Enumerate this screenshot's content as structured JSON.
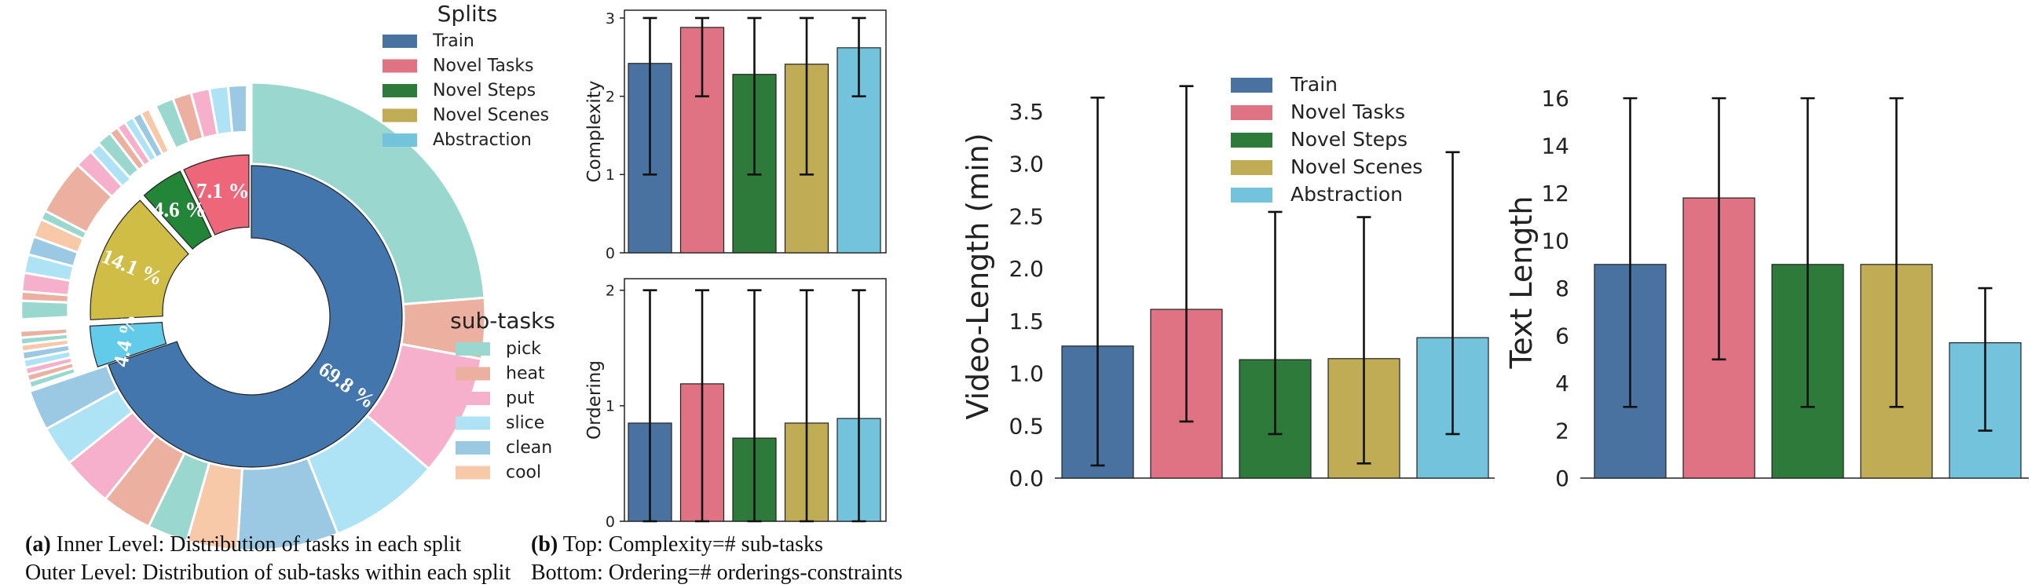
{
  "colors": {
    "Train": "#4a72a0",
    "Novel Tasks": "#e07383",
    "Novel Steps": "#2d7a3a",
    "Novel Scenes": "#bfac55",
    "Abstraction": "#74c3dd",
    "pick": "#9ad8cf",
    "heat": "#ebb0a0",
    "put": "#f7b0cb",
    "slice": "#ade3f5",
    "clean": "#9bc9e3",
    "cool": "#f7c9a9",
    "inner_train": "#4276ad",
    "inner_tasks": "#ed6679",
    "inner_steps": "#238537",
    "inner_scenes": "#cfbd45",
    "inner_abstraction": "#63cbea"
  },
  "chart_data": [
    {
      "type": "pie",
      "variant": "nested-donut",
      "inner": {
        "labels": [
          "Train",
          "Abstraction",
          "Novel Scenes",
          "Novel Steps",
          "Novel Tasks"
        ],
        "values": [
          69.8,
          4.4,
          14.1,
          4.6,
          7.1
        ],
        "value_labels": [
          "69.8 %",
          "4.4 %",
          "14.1 %",
          "4.6 %",
          "7.1 %"
        ]
      },
      "outer": {
        "labels": [
          "pick",
          "heat",
          "put",
          "slice",
          "clean",
          "cool"
        ],
        "note": "outer ring: distribution of sub-tasks within each split"
      },
      "legend_splits": {
        "title": "Splits",
        "items": [
          "Train",
          "Novel Tasks",
          "Novel Steps",
          "Novel Scenes",
          "Abstraction"
        ]
      },
      "legend_subtasks": {
        "title": "sub-tasks",
        "items": [
          "pick",
          "heat",
          "put",
          "slice",
          "clean",
          "cool"
        ]
      }
    },
    {
      "type": "bar",
      "categories": [
        "Train",
        "Novel Tasks",
        "Novel Steps",
        "Novel Scenes",
        "Abstraction"
      ],
      "values": [
        2.42,
        2.88,
        2.28,
        2.41,
        2.62
      ],
      "err_low": [
        1,
        2,
        1,
        1,
        2
      ],
      "err_high": [
        3,
        3,
        3,
        3,
        3
      ],
      "ylabel": "Complexity",
      "ylim": [
        0,
        3.1
      ],
      "yticks": [
        "0",
        "1",
        "2",
        "3"
      ]
    },
    {
      "type": "bar",
      "categories": [
        "Train",
        "Novel Tasks",
        "Novel Steps",
        "Novel Scenes",
        "Abstraction"
      ],
      "values": [
        0.85,
        1.19,
        0.72,
        0.85,
        0.89
      ],
      "err_low": [
        0,
        0,
        0,
        0,
        0
      ],
      "err_high": [
        2,
        2,
        2,
        2,
        2
      ],
      "ylabel": "Ordering",
      "ylim": [
        0,
        2.1
      ],
      "yticks": [
        "0",
        "1",
        "2"
      ]
    },
    {
      "type": "bar",
      "categories": [
        "Train",
        "Novel Tasks",
        "Novel Steps",
        "Novel Scenes",
        "Abstraction"
      ],
      "values": [
        1.26,
        1.61,
        1.13,
        1.14,
        1.34
      ],
      "err_low": [
        0.12,
        0.54,
        0.42,
        0.14,
        0.42
      ],
      "err_high": [
        3.63,
        3.74,
        2.54,
        2.49,
        3.11
      ],
      "ylabel": "Video-Length (min)",
      "ylim": [
        0,
        3.85
      ],
      "yticks": [
        "0.0",
        "0.5",
        "1.0",
        "1.5",
        "2.0",
        "2.5",
        "3.0",
        "3.5"
      ],
      "legend": [
        "Train",
        "Novel Tasks",
        "Novel Steps",
        "Novel Scenes",
        "Abstraction"
      ]
    },
    {
      "type": "bar",
      "categories": [
        "Train",
        "Novel Tasks",
        "Novel Steps",
        "Novel Scenes",
        "Abstraction"
      ],
      "values": [
        9.0,
        11.8,
        9.0,
        9.0,
        5.7
      ],
      "err_low": [
        3,
        5,
        3,
        3,
        2
      ],
      "err_high": [
        16,
        16,
        16,
        16,
        8
      ],
      "ylabel": "Text Length",
      "ylim": [
        0,
        16.5
      ],
      "yticks": [
        "0",
        "2",
        "4",
        "6",
        "8",
        "10",
        "12",
        "14",
        "16"
      ]
    }
  ],
  "captions": {
    "a_tag": "(a)",
    "a_line1": " Inner Level: Distribution of tasks in each split",
    "a_line2": "Outer Level: Distribution of sub-tasks within each split",
    "b_tag": "(b)",
    "b_line1": " Top: Complexity=# sub-tasks",
    "b_line2": "Bottom: Ordering=# orderings-constraints"
  }
}
